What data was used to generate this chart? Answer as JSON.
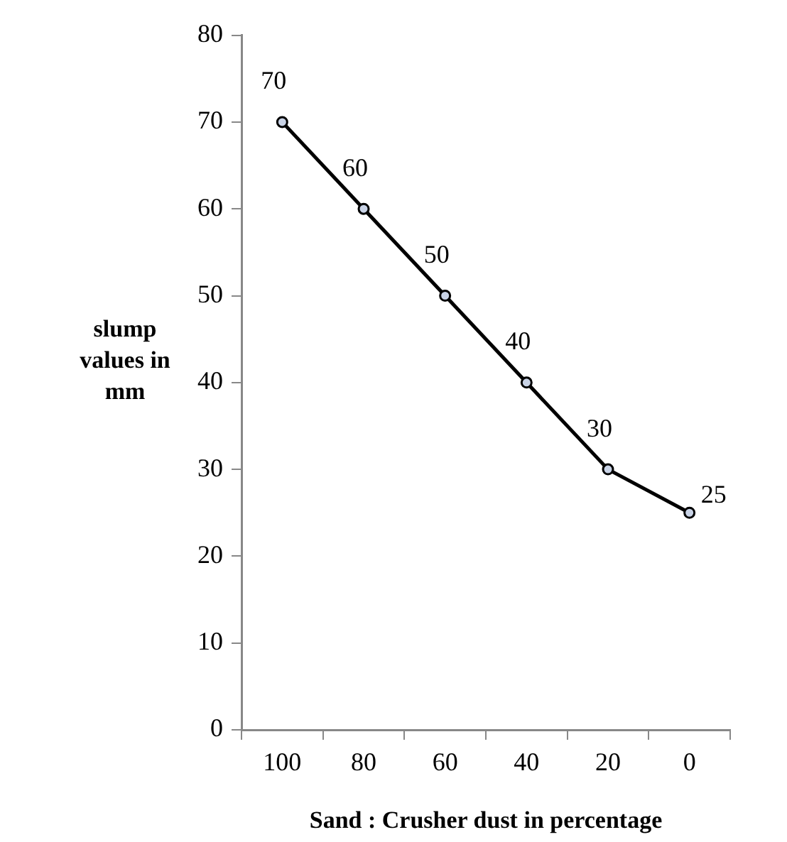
{
  "chart_data": {
    "type": "line",
    "xlabel": "Sand : Crusher dust in percentage",
    "ylabel": "slump values in mm",
    "categories": [
      "100",
      "80",
      "60",
      "40",
      "20",
      "0"
    ],
    "series": [
      {
        "color": "#000000",
        "values": [
          70,
          60,
          50,
          40,
          30,
          25
        ]
      }
    ],
    "ylim": [
      0,
      80
    ],
    "yticks": [
      0,
      10,
      20,
      30,
      40,
      50,
      60,
      70,
      80
    ],
    "data_labels": true,
    "grid": false,
    "legend": false,
    "marker": "circle",
    "line_style": "solid"
  }
}
